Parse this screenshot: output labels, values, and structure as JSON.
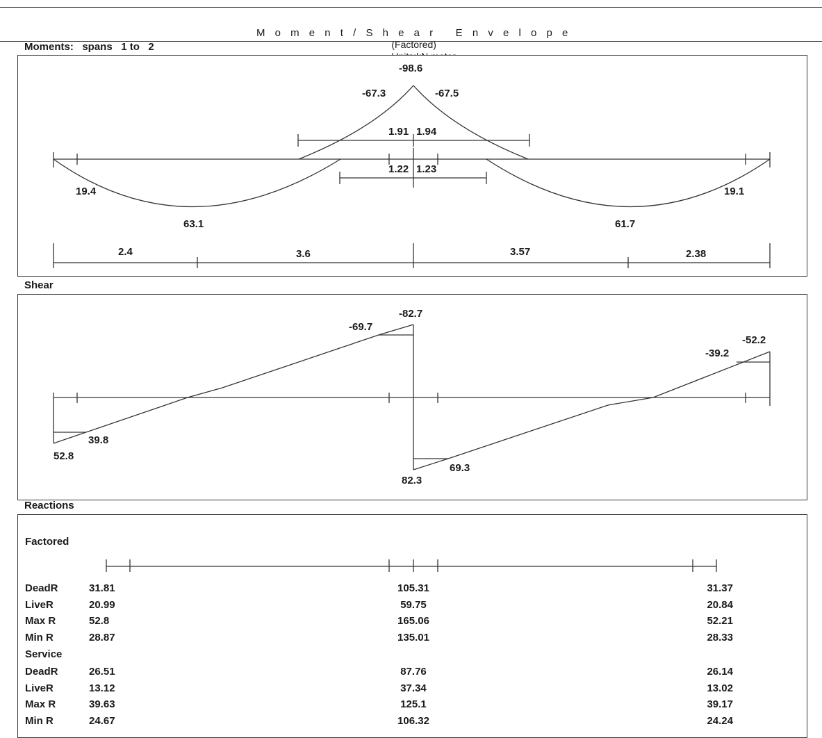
{
  "header": {
    "title": "M o m e n t / S h e a r   E n v e l o p e",
    "subtitle": "(Factored)",
    "units": "Units:kN,meter"
  },
  "moments": {
    "label": "Moments:   spans   1 to   2",
    "labels": {
      "top_peak": "-98.6",
      "left_top": "-67.3",
      "right_top": "-67.5",
      "neg_left_ext": "1.91",
      "neg_right_ext": "1.94",
      "pos_left_ext": "1.22",
      "pos_right_ext": "1.23",
      "left_end": "19.4",
      "right_end": "19.1",
      "span1_max": "63.1",
      "span2_max": "61.7",
      "dim1": "2.4",
      "dim2": "3.6",
      "dim3": "3.57",
      "dim4": "2.38"
    }
  },
  "shear": {
    "label": "Shear",
    "labels": {
      "left_max": "52.8",
      "left_min": "39.8",
      "mid_left_top": "-69.7",
      "mid_peak": "-82.7",
      "mid_bottom": "82.3",
      "mid_right": "69.3",
      "right_top": "-39.2",
      "right_peak": "-52.2"
    }
  },
  "reactions": {
    "label": "Reactions",
    "factored_label": "Factored",
    "service_label": "Service",
    "factored_rows": [
      {
        "name": "DeadR",
        "left": "31.81",
        "mid": "105.31",
        "right": "31.37"
      },
      {
        "name": "LiveR",
        "left": "20.99",
        "mid": "59.75",
        "right": "20.84"
      },
      {
        "name": "Max R",
        "left": "52.8",
        "mid": "165.06",
        "right": "52.21"
      },
      {
        "name": "Min R",
        "left": "28.87",
        "mid": "135.01",
        "right": "28.33"
      }
    ],
    "service_rows": [
      {
        "name": "DeadR",
        "left": "26.51",
        "mid": "87.76",
        "right": "26.14"
      },
      {
        "name": "LiveR",
        "left": "13.12",
        "mid": "37.34",
        "right": "13.02"
      },
      {
        "name": "Max R",
        "left": "39.63",
        "mid": "125.1",
        "right": "39.17"
      },
      {
        "name": "Min R",
        "left": "24.67",
        "mid": "106.32",
        "right": "24.24"
      }
    ]
  }
}
